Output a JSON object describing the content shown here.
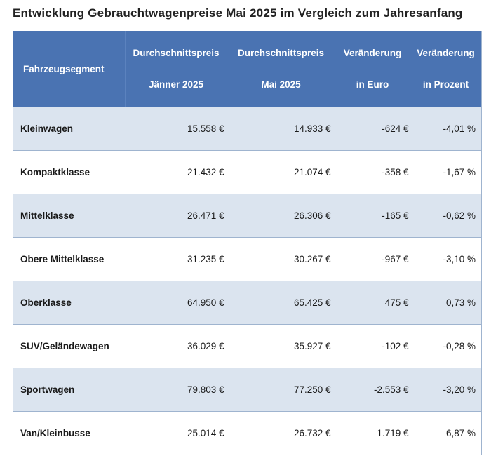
{
  "title": "Entwicklung Gebrauchtwagenpreise Mai 2025 im Vergleich zum Jahresanfang",
  "headers": {
    "segment": "Fahrzeugsegment",
    "price_jan": [
      "Durchschnittspreis",
      "Jänner 2025"
    ],
    "price_may": [
      "Durchschnittspreis",
      "Mai 2025"
    ],
    "change_eur": [
      "Veränderung",
      "in Euro"
    ],
    "change_pct": [
      "Veränderung",
      "in Prozent"
    ]
  },
  "rows": [
    {
      "segment": "Kleinwagen",
      "price_jan": "15.558 €",
      "price_may": "14.933 €",
      "change_eur": "-624 €",
      "change_pct": "-4,01 %"
    },
    {
      "segment": "Kompaktklasse",
      "price_jan": "21.432 €",
      "price_may": "21.074 €",
      "change_eur": "-358 €",
      "change_pct": "-1,67 %"
    },
    {
      "segment": "Mittelklasse",
      "price_jan": "26.471 €",
      "price_may": "26.306 €",
      "change_eur": "-165 €",
      "change_pct": "-0,62 %"
    },
    {
      "segment": "Obere Mittelklasse",
      "price_jan": "31.235 €",
      "price_may": "30.267 €",
      "change_eur": "-967 €",
      "change_pct": "-3,10 %"
    },
    {
      "segment": "Oberklasse",
      "price_jan": "64.950 €",
      "price_may": "65.425 €",
      "change_eur": "475 €",
      "change_pct": "0,73 %"
    },
    {
      "segment": "SUV/Geländewagen",
      "price_jan": "36.029 €",
      "price_may": "35.927 €",
      "change_eur": "-102 €",
      "change_pct": "-0,28 %"
    },
    {
      "segment": "Sportwagen",
      "price_jan": "79.803 €",
      "price_may": "77.250 €",
      "change_eur": "-2.553 €",
      "change_pct": "-3,20 %"
    },
    {
      "segment": "Van/Kleinbusse",
      "price_jan": "25.014 €",
      "price_may": "26.732 €",
      "change_eur": "1.719 €",
      "change_pct": "6,87 %"
    }
  ],
  "colors": {
    "header_bg": "#4a73b2",
    "header_text": "#ffffff",
    "row_alt_bg": "#dbe4ef",
    "row_plain_bg": "#ffffff",
    "border": "#9fb4cf"
  }
}
